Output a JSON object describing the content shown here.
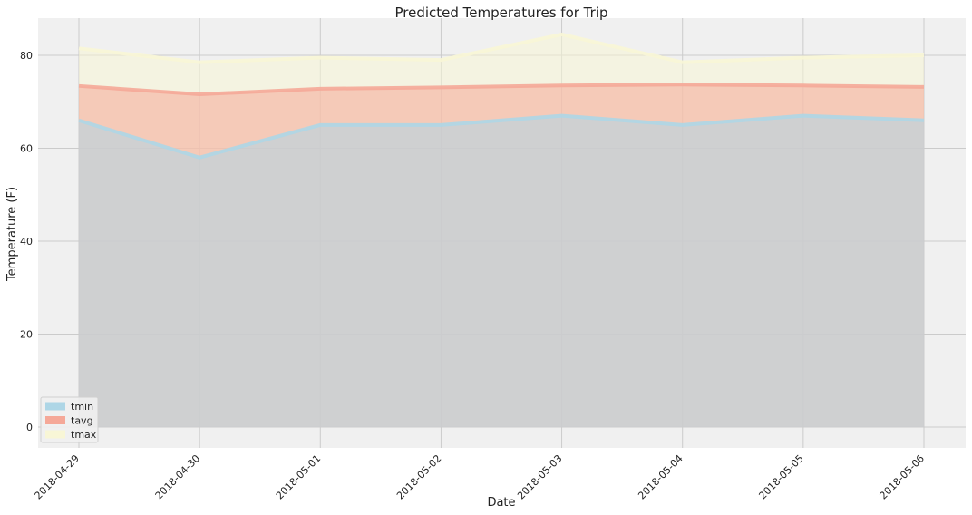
{
  "chart_data": {
    "type": "area",
    "title": "Predicted Temperatures for Trip",
    "xlabel": "Date",
    "ylabel": "Temperature (F)",
    "categories": [
      "2018-04-29",
      "2018-04-30",
      "2018-05-01",
      "2018-05-02",
      "2018-05-03",
      "2018-05-04",
      "2018-05-05",
      "2018-05-06"
    ],
    "ylim": [
      -4.5,
      88
    ],
    "yticks": [
      0,
      20,
      40,
      60,
      80
    ],
    "grid": true,
    "stacked": false,
    "legend_position": "lower-left",
    "series": [
      {
        "name": "tmin",
        "color": "#aed6e6",
        "values": [
          66,
          58,
          65,
          65,
          67,
          65,
          67,
          66
        ]
      },
      {
        "name": "tavg",
        "color": "#f5a898",
        "values": [
          73.4,
          71.6,
          72.8,
          73.1,
          73.5,
          73.7,
          73.5,
          73.2
        ]
      },
      {
        "name": "tmax",
        "color": "#f8f6d6",
        "values": [
          81.5,
          78.5,
          79.5,
          79,
          84.5,
          78.5,
          79.5,
          80
        ]
      }
    ],
    "colors": {
      "background": "#f0f0f0",
      "grid": "#cbcbcb"
    }
  }
}
